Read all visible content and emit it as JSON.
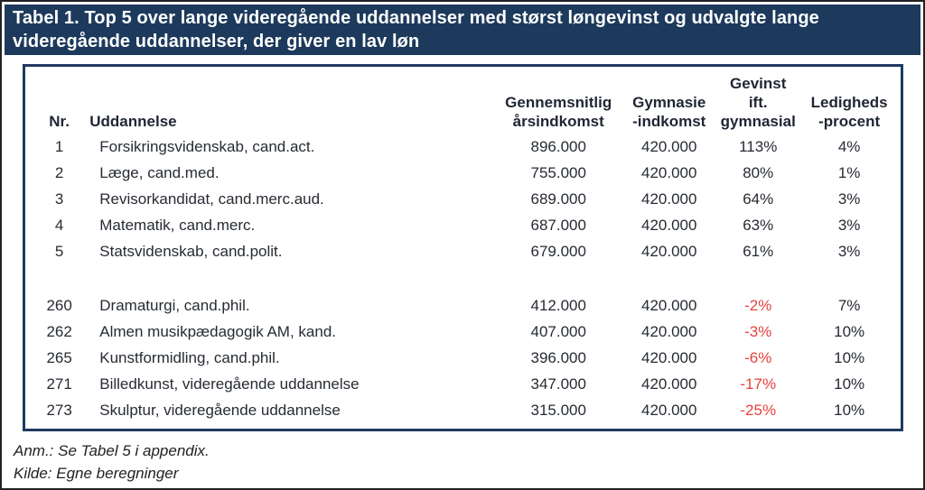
{
  "title": "Tabel 1. Top 5 over lange videregående uddannelser med størst løngevinst og udvalgte lange videregående uddannelser, der giver en lav løn",
  "colors": {
    "title_bar_bg": "#1d3a5c",
    "table_border": "#1f3a60",
    "negative_value": "#e8403c"
  },
  "table": {
    "columns": {
      "nr": "Nr.",
      "uddannelse": "Uddannelse",
      "aarsindkomst": "Gennemsnitlig\nårsindkomst",
      "gymnasie": "Gymnasie\n-indkomst",
      "gevinst": "Gevinst\nift.\ngymnasial",
      "ledighed": "Ledigheds\n-procent"
    },
    "rows": [
      {
        "nr": "1",
        "uddannelse": "Forsikringsvidenskab, cand.act.",
        "aarsindkomst": "896.000",
        "gymnasie": "420.000",
        "gevinst": "113%",
        "ledighed": "4%"
      },
      {
        "nr": "2",
        "uddannelse": "Læge, cand.med.",
        "aarsindkomst": "755.000",
        "gymnasie": "420.000",
        "gevinst": "80%",
        "ledighed": "1%"
      },
      {
        "nr": "3",
        "uddannelse": "Revisorkandidat, cand.merc.aud.",
        "aarsindkomst": "689.000",
        "gymnasie": "420.000",
        "gevinst": "64%",
        "ledighed": "3%"
      },
      {
        "nr": "4",
        "uddannelse": "Matematik, cand.merc.",
        "aarsindkomst": "687.000",
        "gymnasie": "420.000",
        "gevinst": "63%",
        "ledighed": "3%"
      },
      {
        "nr": "5",
        "uddannelse": "Statsvidenskab, cand.polit.",
        "aarsindkomst": "679.000",
        "gymnasie": "420.000",
        "gevinst": "61%",
        "ledighed": "3%"
      },
      {
        "nr": "260",
        "uddannelse": "Dramaturgi, cand.phil.",
        "aarsindkomst": "412.000",
        "gymnasie": "420.000",
        "gevinst": "-2%",
        "ledighed": "7%"
      },
      {
        "nr": "262",
        "uddannelse": "Almen musikpædagogik AM, kand.",
        "aarsindkomst": "407.000",
        "gymnasie": "420.000",
        "gevinst": "-3%",
        "ledighed": "10%"
      },
      {
        "nr": "265",
        "uddannelse": "Kunstformidling, cand.phil.",
        "aarsindkomst": "396.000",
        "gymnasie": "420.000",
        "gevinst": "-6%",
        "ledighed": "10%"
      },
      {
        "nr": "271",
        "uddannelse": "Billedkunst, videregående uddannelse",
        "aarsindkomst": "347.000",
        "gymnasie": "420.000",
        "gevinst": "-17%",
        "ledighed": "10%"
      },
      {
        "nr": "273",
        "uddannelse": "Skulptur, videregående uddannelse",
        "aarsindkomst": "315.000",
        "gymnasie": "420.000",
        "gevinst": "-25%",
        "ledighed": "10%"
      }
    ]
  },
  "notes": {
    "anm": "Anm.: Se Tabel 5 i appendix.",
    "kilde": "Kilde: Egne beregninger"
  }
}
